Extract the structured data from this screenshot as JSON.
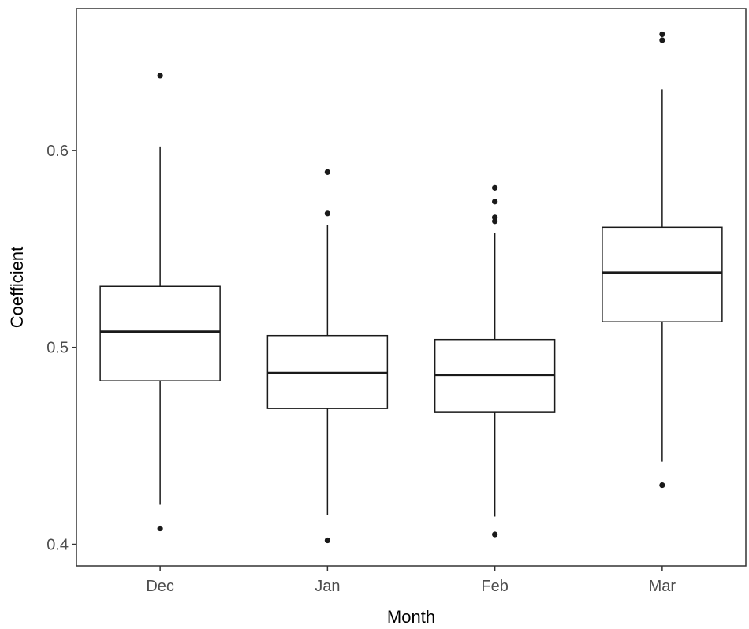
{
  "chart_data": {
    "type": "boxplot",
    "xlabel": "Month",
    "ylabel": "Coefficient",
    "categories": [
      "Dec",
      "Jan",
      "Feb",
      "Mar"
    ],
    "ylim": [
      0.389,
      0.672
    ],
    "yticks": [
      0.4,
      0.5,
      0.6
    ],
    "ytick_labels": [
      "0.4",
      "0.5",
      "0.6"
    ],
    "grid": false,
    "boxes": [
      {
        "category": "Dec",
        "whisker_low": 0.42,
        "q1": 0.483,
        "median": 0.508,
        "q3": 0.531,
        "whisker_high": 0.602,
        "outliers": [
          0.638,
          0.408
        ]
      },
      {
        "category": "Jan",
        "whisker_low": 0.415,
        "q1": 0.469,
        "median": 0.487,
        "q3": 0.506,
        "whisker_high": 0.562,
        "outliers": [
          0.589,
          0.568,
          0.402
        ]
      },
      {
        "category": "Feb",
        "whisker_low": 0.414,
        "q1": 0.467,
        "median": 0.486,
        "q3": 0.504,
        "whisker_high": 0.558,
        "outliers": [
          0.581,
          0.574,
          0.566,
          0.564,
          0.405
        ]
      },
      {
        "category": "Mar",
        "whisker_low": 0.442,
        "q1": 0.513,
        "median": 0.538,
        "q3": 0.561,
        "whisker_high": 0.631,
        "outliers": [
          0.659,
          0.656,
          0.43
        ]
      }
    ]
  }
}
